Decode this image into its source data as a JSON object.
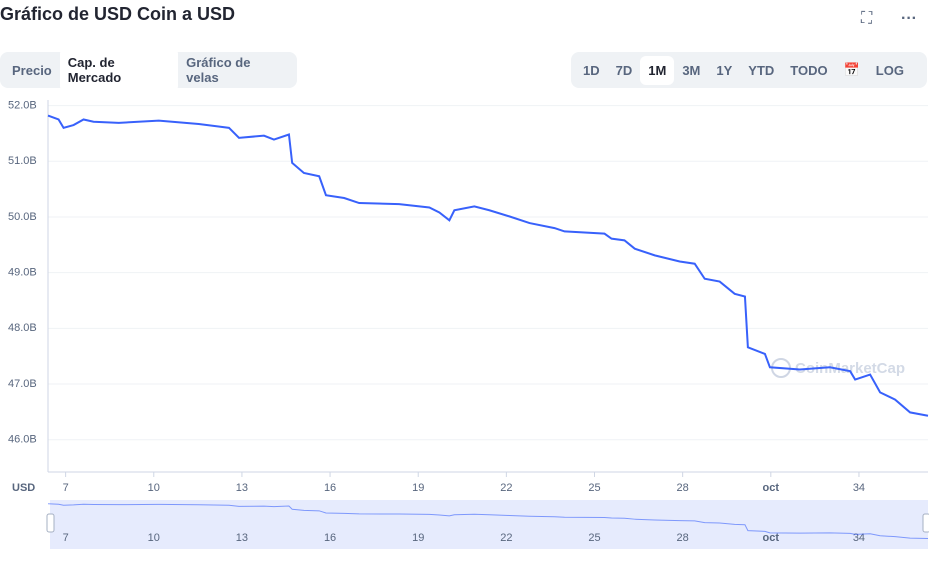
{
  "ui": {
    "title": "Gráfico de USD Coin a USD",
    "tabs": [
      "Precio",
      "Cap. de Mercado",
      "Gráfico de velas"
    ],
    "ranges": [
      "1D",
      "7D",
      "1M",
      "3M",
      "1Y",
      "YTD",
      "TODO"
    ],
    "log": "LOG",
    "watermark": "CoinMarketCap"
  },
  "chart_data": {
    "type": "line",
    "y_unit_label": "USD",
    "xlim": [
      6.4,
      36.35
    ],
    "ylim": [
      45.42,
      52.1
    ],
    "xticks": [
      7,
      10,
      13,
      16,
      19,
      22,
      25,
      28,
      {
        "value": 31,
        "label": "oct"
      },
      34
    ],
    "yticks": [
      {
        "value": 46,
        "label": "46.0B"
      },
      {
        "value": 47,
        "label": "47.0B"
      },
      {
        "value": 48,
        "label": "48.0B"
      },
      {
        "value": 49,
        "label": "49.0B"
      },
      {
        "value": 50,
        "label": "50.0B"
      },
      {
        "value": 51,
        "label": "51.0B"
      },
      {
        "value": 52,
        "label": "52.0B"
      }
    ],
    "grid": true,
    "series": [
      {
        "name": "Cap. de Mercado",
        "color": "#3861fb",
        "x": [
          6.4,
          6.76,
          6.93,
          7.27,
          7.61,
          7.95,
          8.81,
          10.17,
          11.53,
          12.56,
          12.9,
          13.75,
          14.09,
          14.6,
          14.71,
          15.11,
          15.63,
          15.86,
          16.48,
          16.99,
          18.35,
          19.38,
          19.72,
          20.06,
          20.23,
          20.91,
          21.42,
          22.1,
          22.79,
          23.64,
          23.98,
          25.34,
          25.58,
          26.02,
          26.37,
          27.05,
          27.9,
          28.41,
          28.75,
          29.26,
          29.77,
          30.12,
          30.22,
          30.8,
          30.97,
          31.99,
          33.01,
          33.7,
          33.87,
          34.38,
          34.72,
          35.23,
          35.74,
          36.35
        ],
        "values": [
          51.82,
          51.75,
          51.6,
          51.65,
          51.75,
          51.71,
          51.69,
          51.73,
          51.67,
          51.6,
          51.42,
          51.46,
          51.39,
          51.48,
          50.97,
          50.79,
          50.73,
          50.39,
          50.34,
          50.25,
          50.23,
          50.17,
          50.08,
          49.94,
          50.12,
          50.19,
          50.12,
          50.01,
          49.89,
          49.8,
          49.74,
          49.7,
          49.61,
          49.58,
          49.43,
          49.31,
          49.2,
          49.16,
          48.89,
          48.84,
          48.62,
          48.57,
          47.66,
          47.54,
          47.3,
          47.26,
          47.3,
          47.23,
          47.08,
          47.17,
          46.85,
          46.72,
          46.49,
          46.43
        ]
      }
    ]
  }
}
